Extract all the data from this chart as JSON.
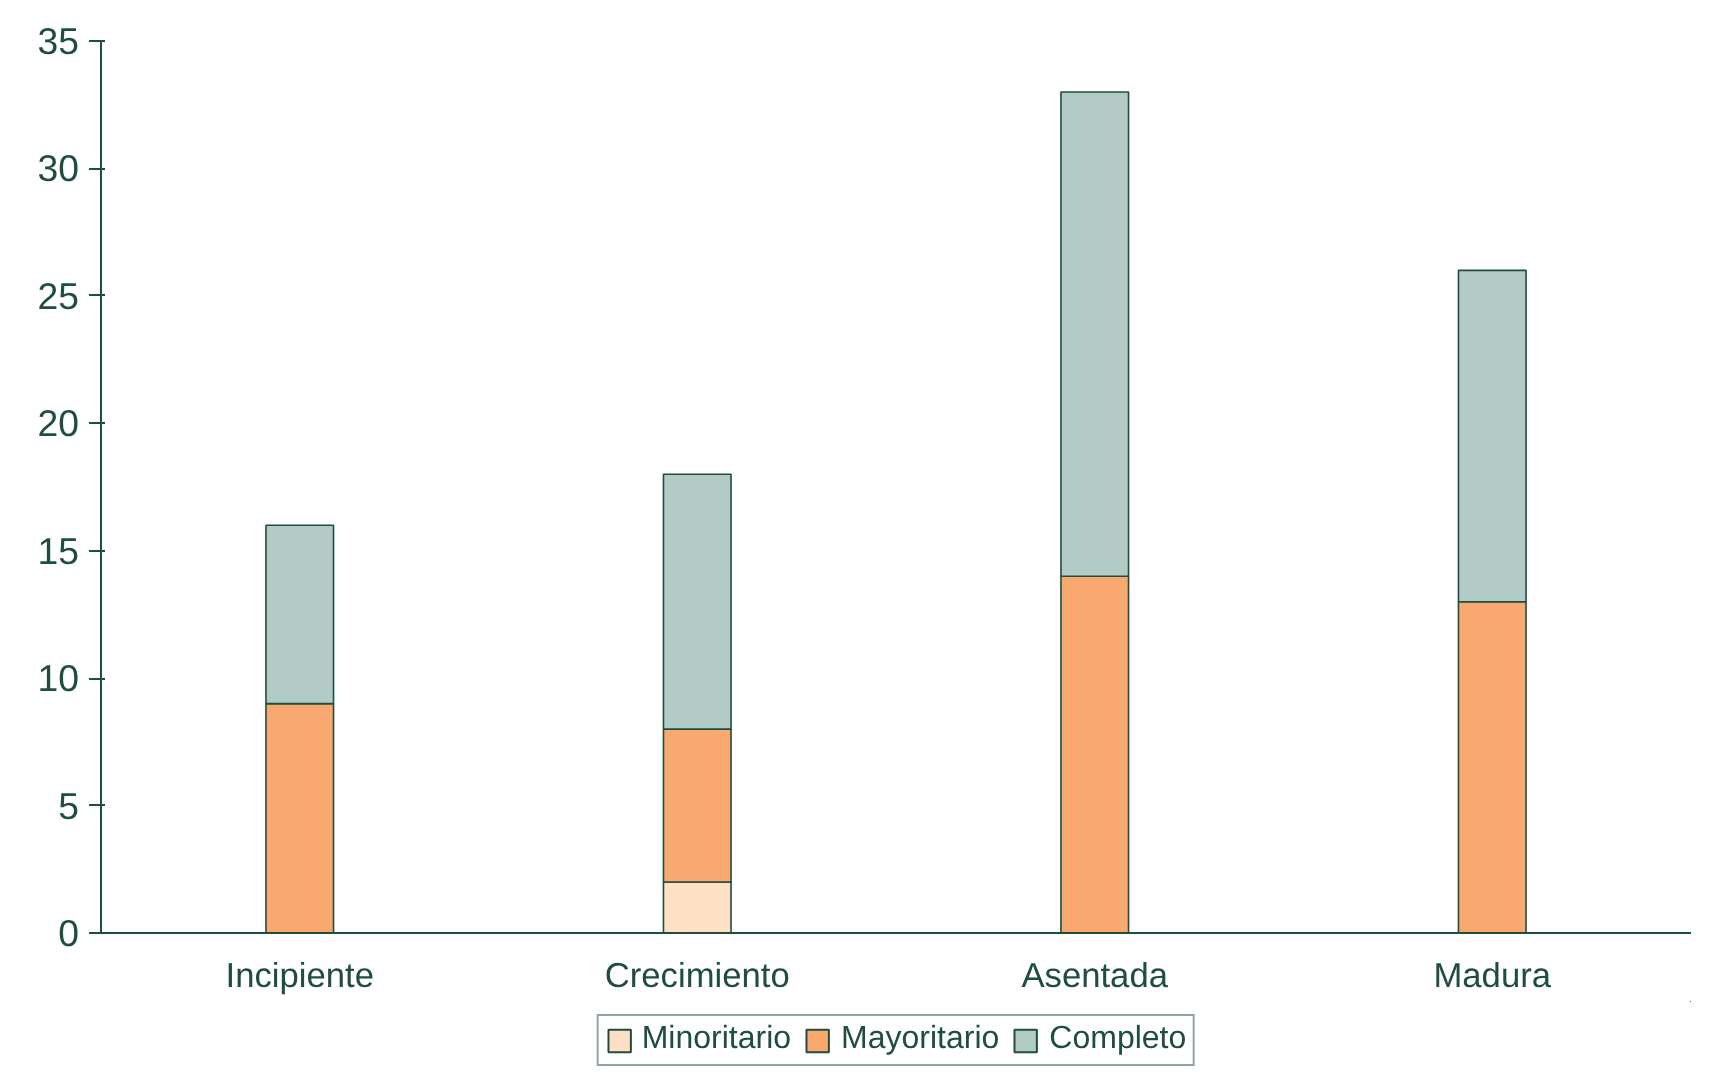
{
  "chart_data": {
    "type": "bar",
    "stacked": true,
    "categories": [
      "Incipiente",
      "Crecimiento",
      "Asentada",
      "Madura"
    ],
    "series": [
      {
        "name": "Minoritario",
        "color": "#fde0c5",
        "values": [
          0,
          2,
          0,
          0
        ]
      },
      {
        "name": "Mayoritario",
        "color": "#f9a870",
        "values": [
          9,
          6,
          14,
          13
        ]
      },
      {
        "name": "Completo",
        "color": "#b2cbc6",
        "values": [
          7,
          10,
          19,
          13
        ]
      }
    ],
    "ylim": [
      0,
      35
    ],
    "yticks": [
      0,
      5,
      10,
      15,
      20,
      25,
      30,
      35
    ],
    "grid": false,
    "legend": "bottom"
  }
}
